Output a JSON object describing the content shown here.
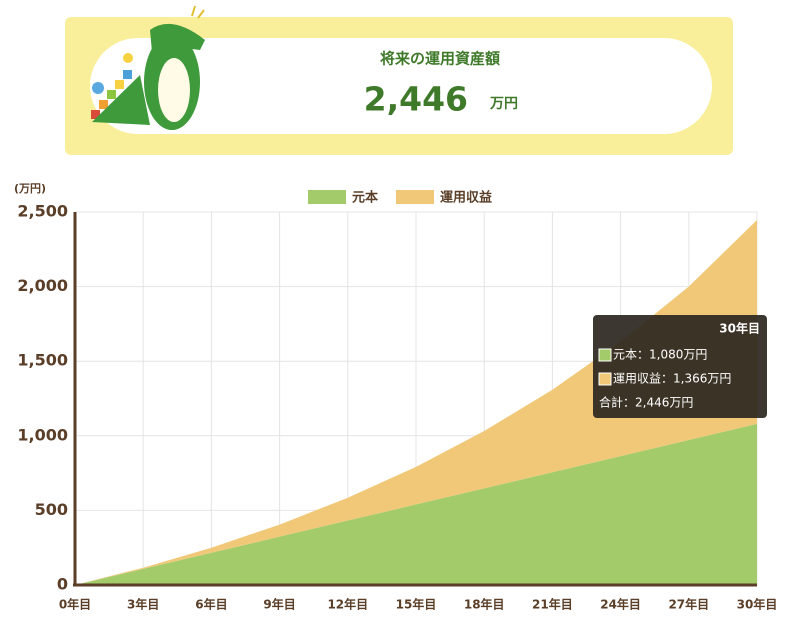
{
  "header": {
    "title": "将来の運用資産額",
    "amount": "2,446",
    "unit": "万円"
  },
  "chart_data": {
    "type": "stacked-area",
    "y_unit": "(万円)",
    "categories": [
      "0年目",
      "3年目",
      "6年目",
      "9年目",
      "12年目",
      "15年目",
      "18年目",
      "21年目",
      "24年目",
      "27年目",
      "30年目"
    ],
    "series": [
      {
        "name": "元本",
        "color": "#a3cb6a",
        "values": [
          0,
          108,
          216,
          324,
          432,
          540,
          648,
          756,
          864,
          972,
          1080
        ]
      },
      {
        "name": "運用収益",
        "color": "#f0c878",
        "values": [
          0,
          8,
          34,
          81,
          153,
          252,
          384,
          553,
          766,
          1029,
          1366
        ]
      }
    ],
    "ylim": [
      0,
      2500
    ],
    "yticks": [
      0,
      {
        "value": 500,
        "label": "500"
      },
      {
        "value": 1000,
        "label": "1,000"
      },
      {
        "value": 1500,
        "label": "1,500"
      },
      {
        "value": 2000,
        "label": "2,000"
      },
      {
        "value": 2500,
        "label": "2,500"
      }
    ],
    "grid": true,
    "tooltip": {
      "title": "30年目",
      "lines": [
        "元本：1,080万円",
        "運用収益：1,366万円",
        "合計：2,446万円"
      ]
    }
  }
}
